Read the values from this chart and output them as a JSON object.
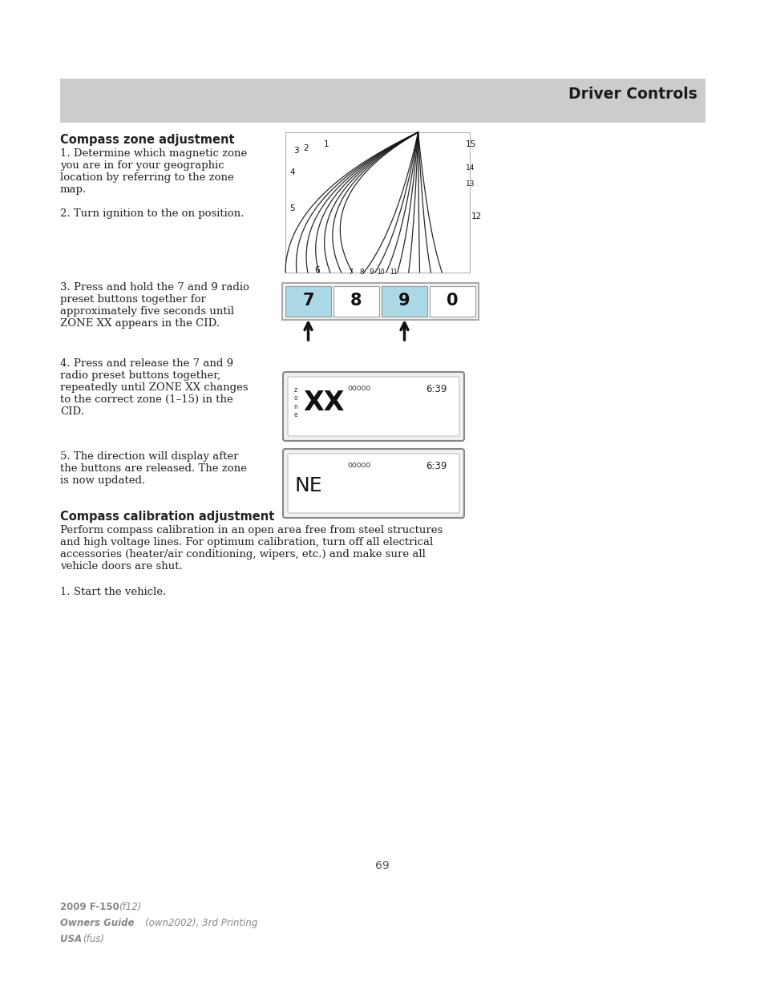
{
  "page_bg": "#ffffff",
  "header_bg": "#cccccc",
  "header_text": "Driver Controls",
  "header_text_color": "#1a1a1a",
  "section1_title": "Compass zone adjustment",
  "step12_text": "1. Determine which magnetic zone\nyou are in for your geographic\nlocation by referring to the zone\nmap.\n\n2. Turn ignition to the on position.",
  "step3_text": "3. Press and hold the 7 and 9 radio\npreset buttons together for\napproximately five seconds until\nZONE XX appears in the CID.",
  "step4_text": "4. Press and release the 7 and 9\nradio preset buttons together,\nrepeatedly until ZONE XX changes\nto the correct zone (1–15) in the\nCID.",
  "step5_text": "5. The direction will display after\nthe buttons are released. The zone\nis now updated.",
  "section2_title": "Compass calibration adjustment",
  "section2_body": "Perform compass calibration in an open area free from steel structures\nand high voltage lines. For optimum calibration, turn off all electrical\naccessories (heater/air conditioning, wipers, etc.) and make sure all\nvehicle doors are shut.",
  "section2_step1": "1. Start the vehicle.",
  "page_number": "69",
  "footer_line1": "2009 F-150 (f12)",
  "footer_line2": "Owners Guide (own2002), 3rd Printing",
  "footer_line3": "USA (fus)",
  "button_labels": [
    "7",
    "8",
    "9",
    "0"
  ],
  "button_highlight": [
    true,
    false,
    true,
    false
  ],
  "button_highlight_color": "#add8e6",
  "text_color": "#222222",
  "body_font_size": 9.5,
  "title_font_size": 10.5,
  "header_font_size": 13.5
}
